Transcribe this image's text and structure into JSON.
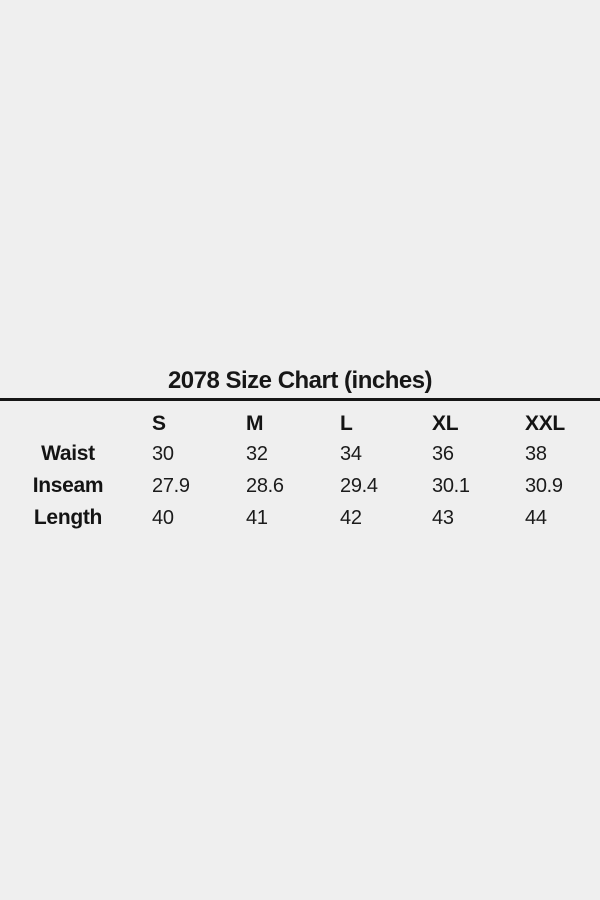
{
  "page": {
    "background_color": "#efefef",
    "text_color": "#1b1b1b",
    "rule_color": "#161616"
  },
  "chart_data": {
    "type": "table",
    "title": "2078 Size Chart (inches)",
    "columns": [
      "",
      "S",
      "M",
      "L",
      "XL",
      "XXL"
    ],
    "rows": [
      {
        "label": "Waist",
        "values": [
          "30",
          "32",
          "34",
          "36",
          "38"
        ]
      },
      {
        "label": "Inseam",
        "values": [
          "27.9",
          "28.6",
          "29.4",
          "30.1",
          "30.9"
        ]
      },
      {
        "label": "Length",
        "values": [
          "40",
          "41",
          "42",
          "43",
          "44"
        ]
      }
    ],
    "layout": {
      "legend": "none",
      "grid": "off",
      "title_position": "top-center",
      "divider": "full-width horizontal rule under title"
    }
  }
}
